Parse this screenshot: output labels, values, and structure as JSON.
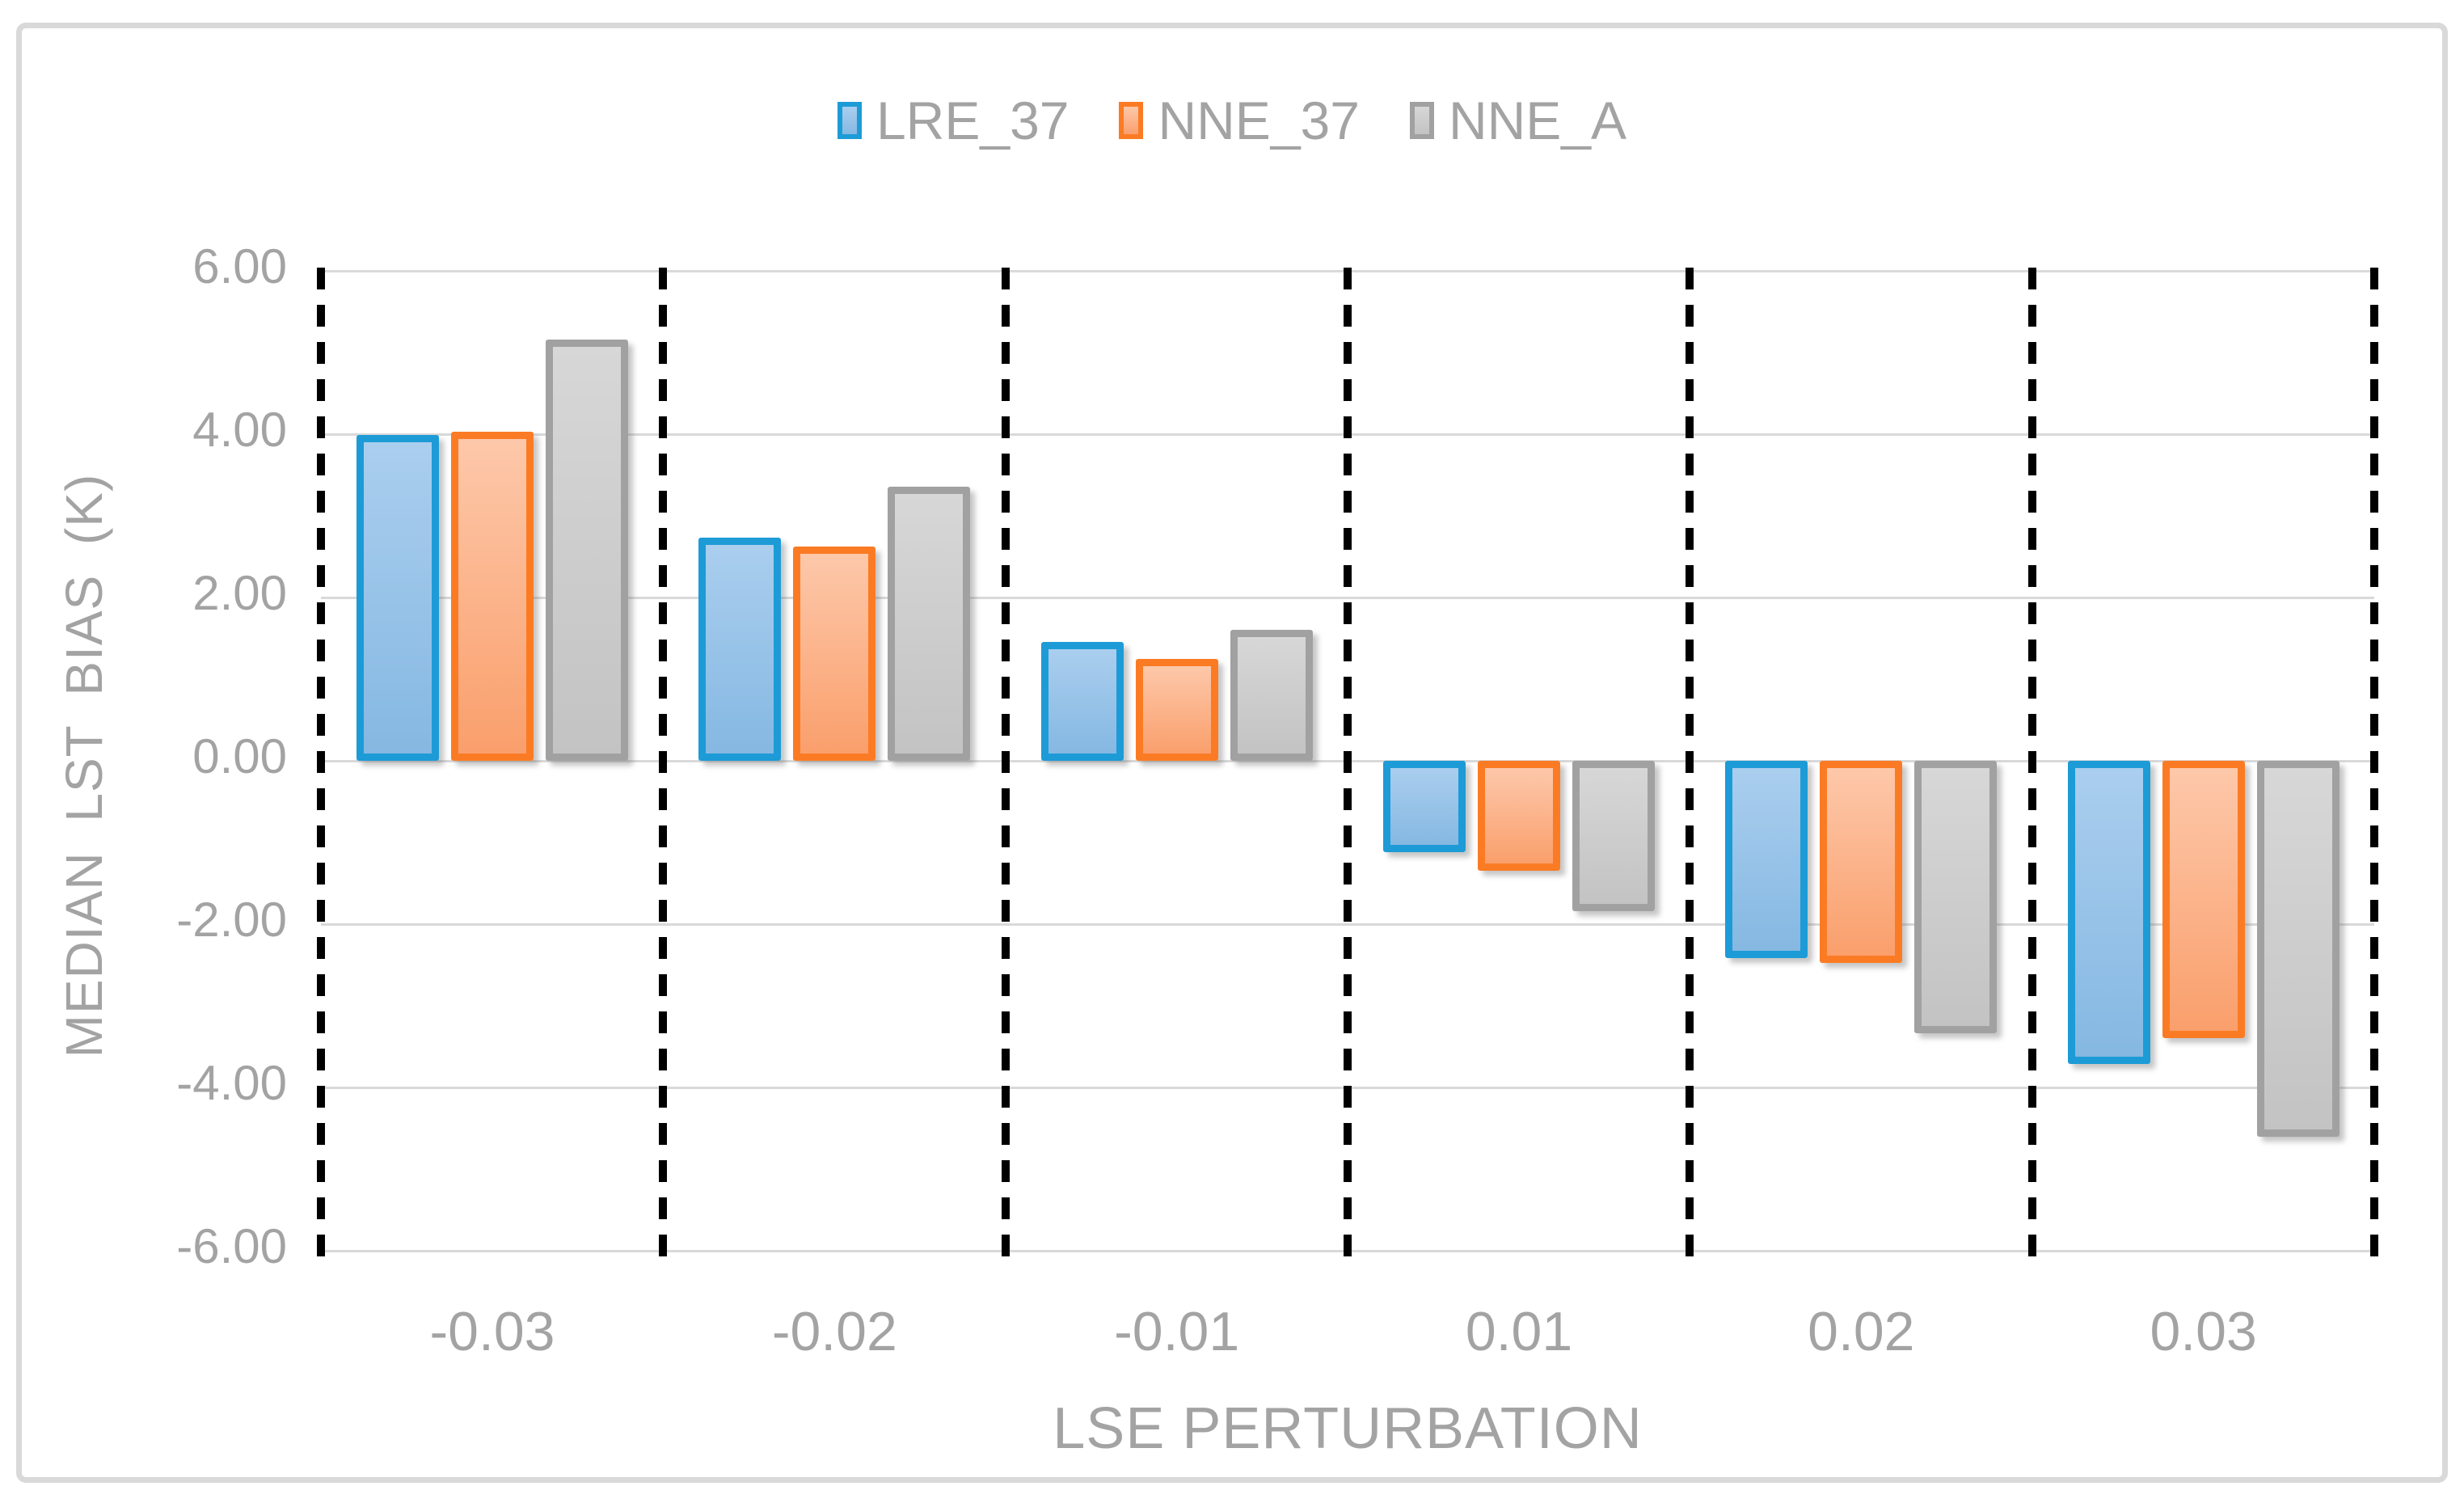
{
  "chart_data": {
    "type": "bar",
    "title": "",
    "categories": [
      "-0.03",
      "-0.02",
      "-0.01",
      "0.01",
      "0.02",
      "0.03"
    ],
    "series": [
      {
        "name": "LRE_37",
        "border_color": "#1D9BD7",
        "fill_top": "#AACEEE",
        "fill_bottom": "#85B8E2",
        "values": [
          3.99,
          2.73,
          1.46,
          -1.12,
          -2.42,
          -3.71
        ]
      },
      {
        "name": "NNE_37",
        "border_color": "#FB7B24",
        "fill_top": "#FDC8AA",
        "fill_bottom": "#FA9F6C",
        "values": [
          4.03,
          2.62,
          1.25,
          -1.35,
          -2.48,
          -3.4
        ]
      },
      {
        "name": "NNE_A",
        "border_color": "#A1A1A1",
        "fill_top": "#D7D7D7",
        "fill_bottom": "#C3C3C3",
        "values": [
          5.16,
          3.36,
          1.6,
          -1.84,
          -3.34,
          -4.6
        ]
      }
    ],
    "xlabel": "LSE PERTURBATION",
    "ylabel": "MEDIAN  LST  BIAS (K)",
    "ylim": [
      -6,
      6
    ],
    "ytick_step": 2,
    "ytick_labels": [
      "6.00",
      "4.00",
      "2.00",
      "0.00",
      "-2.00",
      "-4.00",
      "-6.00"
    ],
    "grid": "horizontal-on",
    "category_separators": "dashed-black-vertical",
    "legend_position": "top-center",
    "colors": {
      "axis_text": "#A3A3A3",
      "gridline": "#D9D9D9",
      "frame_border": "#D9D9D9",
      "separator": "#000000",
      "background": "#FFFFFF"
    }
  }
}
